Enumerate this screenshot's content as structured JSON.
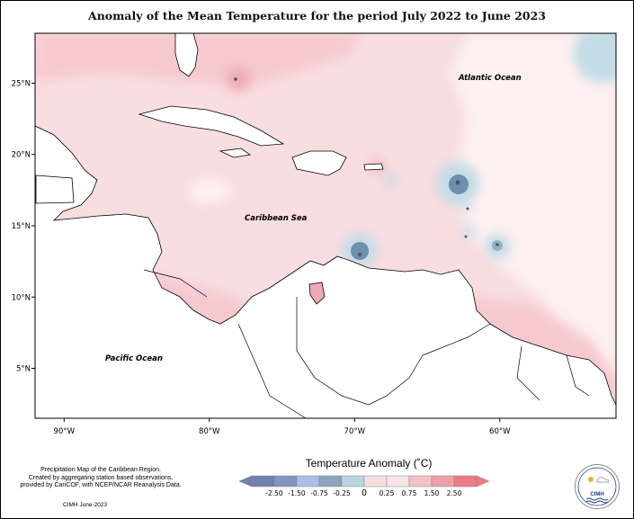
{
  "title": "Anomaly of the Mean Temperature for the period July 2022 to June 2023",
  "map": {
    "lon_range": [
      -92,
      -52
    ],
    "lat_range": [
      1.5,
      28.5
    ],
    "lat_ticks": [
      "25°N",
      "20°N",
      "15°N",
      "10°N",
      "5°N"
    ],
    "lon_ticks": [
      "90°W",
      "80°W",
      "70°W",
      "60°W"
    ],
    "labels": {
      "atlantic": "Atlantic Ocean",
      "caribbean": "Caribbean Sea",
      "pacific": "Pacific Ocean"
    },
    "colors": {
      "land": "#ffffff",
      "base_anomaly": "#f8dde1",
      "warm_light": "#f6c9cf",
      "warm_mid": "#eeaab3",
      "warm_high": "#e88690",
      "neutral": "#fdf0f1",
      "cool_light": "#c3dce6",
      "cool_mid": "#8fb2c8",
      "cool_deep": "#6e8fb0",
      "coast": "#000000"
    }
  },
  "legend": {
    "title": "Temperature Anomaly (˚C)",
    "colors": [
      "#6f80b1",
      "#8296c3",
      "#a9bfe6",
      "#8aa5bb",
      "#b9d6e0",
      "#f3dfe0",
      "#f8e4e4",
      "#f2c2c6",
      "#eda0a7",
      "#ee7a82"
    ],
    "tick_labels": [
      "-2.50",
      "-1.50",
      "-0.75",
      "-0.25",
      "0",
      "0.25",
      "0.75",
      "1.50",
      "2.50"
    ]
  },
  "credits": {
    "line1": "Precipitation Map of the Caribbean Region.",
    "line2": "Created by aggregating station based observations,",
    "line3": "provided by CariCOF, with NCEP/NCAR Reanalysis Data.",
    "date": "CIMH June-2023"
  },
  "logo": {
    "text": "CIMH"
  }
}
